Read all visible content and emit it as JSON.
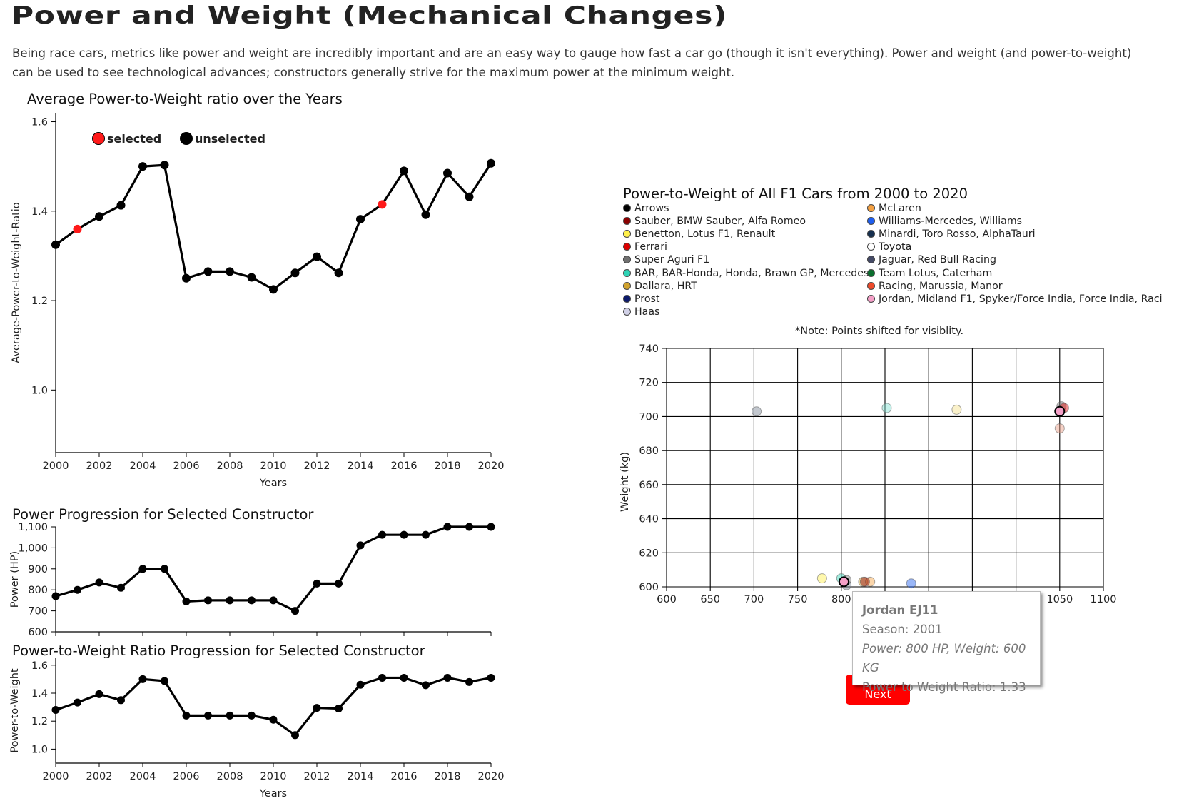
{
  "page": {
    "title": "Power and Weight (Mechanical Changes)",
    "intro": "Being race cars, metrics like power and weight are incredibly important and are an easy way to gauge how fast a car go (though it isn't everything). Power and weight (and power-to-weight) can be used to see technological advances; constructors generally strive for the maximum power at the minimum weight."
  },
  "colors": {
    "selected": "#ff1a1a",
    "unselected": "#000000",
    "button": "#ff0000"
  },
  "chart_data": [
    {
      "id": "avg_ptw",
      "type": "line",
      "title": "Average Power-to-Weight ratio over the Years",
      "xlabel": "Years",
      "ylabel": "Average-Power-to-Weight-Ratio",
      "xlim": [
        2000,
        2020
      ],
      "ylim": [
        0.86,
        1.62
      ],
      "xticks": [
        2000,
        2002,
        2004,
        2006,
        2008,
        2010,
        2012,
        2014,
        2016,
        2018,
        2020
      ],
      "yticks": [
        1.0,
        1.2,
        1.4,
        1.6
      ],
      "legend": [
        {
          "label": "selected",
          "color": "#ff1a1a"
        },
        {
          "label": "unselected",
          "color": "#000000"
        }
      ],
      "legend_position": "top-left",
      "x": [
        2000,
        2001,
        2002,
        2003,
        2004,
        2005,
        2006,
        2007,
        2008,
        2009,
        2010,
        2011,
        2012,
        2013,
        2014,
        2015,
        2016,
        2017,
        2018,
        2019,
        2020
      ],
      "values": [
        1.325,
        1.36,
        1.388,
        1.413,
        1.5,
        1.503,
        1.25,
        1.265,
        1.265,
        1.252,
        1.225,
        1.262,
        1.298,
        1.262,
        1.382,
        1.415,
        1.49,
        1.392,
        1.485,
        1.432,
        1.507
      ],
      "selected_x": [
        2001,
        2015
      ]
    },
    {
      "id": "power",
      "type": "line",
      "title": "Power Progression for Selected Constructor",
      "xlabel": "",
      "ylabel": "Power (HP)",
      "xlim": [
        2000,
        2020
      ],
      "ylim": [
        600,
        1100
      ],
      "yticks": [
        600,
        700,
        800,
        900,
        1000,
        1100
      ],
      "ytick_labels": [
        "600",
        "700",
        "800",
        "900",
        "1,000",
        "1,100"
      ],
      "x": [
        2000,
        2001,
        2002,
        2003,
        2004,
        2005,
        2006,
        2007,
        2008,
        2009,
        2010,
        2011,
        2012,
        2013,
        2014,
        2015,
        2016,
        2017,
        2018,
        2019,
        2020
      ],
      "values": [
        770,
        800,
        835,
        810,
        900,
        900,
        745,
        750,
        750,
        750,
        750,
        700,
        830,
        830,
        1012,
        1062,
        1062,
        1062,
        1100,
        1100,
        1100
      ]
    },
    {
      "id": "ptw_constructor",
      "type": "line",
      "title": "Power-to-Weight Ratio Progression for Selected Constructor",
      "xlabel": "Years",
      "ylabel": "Power-to-Weight",
      "xlim": [
        2000,
        2020
      ],
      "ylim": [
        0.9,
        1.65
      ],
      "xticks": [
        2000,
        2002,
        2004,
        2006,
        2008,
        2010,
        2012,
        2014,
        2016,
        2018,
        2020
      ],
      "yticks": [
        1.0,
        1.2,
        1.4,
        1.6
      ],
      "x": [
        2000,
        2001,
        2002,
        2003,
        2004,
        2005,
        2006,
        2007,
        2008,
        2009,
        2010,
        2011,
        2012,
        2013,
        2014,
        2015,
        2016,
        2017,
        2018,
        2019,
        2020
      ],
      "values": [
        1.28,
        1.333,
        1.393,
        1.35,
        1.5,
        1.487,
        1.24,
        1.24,
        1.24,
        1.24,
        1.21,
        1.1,
        1.295,
        1.29,
        1.46,
        1.51,
        1.51,
        1.457,
        1.51,
        1.48,
        1.51
      ]
    },
    {
      "id": "scatter",
      "type": "scatter",
      "title": "Power-to-Weight of All F1 Cars from 2000 to 2020",
      "note": "*Note: Points shifted for visiblity.",
      "xlabel": "",
      "ylabel": "Weight (kg)",
      "xlim": [
        600,
        1100
      ],
      "ylim": [
        600,
        740
      ],
      "xticks": [
        600,
        650,
        700,
        750,
        800,
        850,
        900,
        950,
        1000,
        1050,
        1100
      ],
      "yticks": [
        600,
        620,
        640,
        660,
        680,
        700,
        720,
        740
      ],
      "xtick_labels": [
        "600",
        "650",
        "700",
        "750",
        "800",
        "",
        "",
        "",
        "",
        "1050",
        "1100"
      ],
      "grid": true,
      "legend_columns": [
        [
          {
            "label": "Arrows",
            "color": "#000000"
          },
          {
            "label": "Sauber, BMW Sauber, Alfa Romeo",
            "color": "#8b0000"
          },
          {
            "label": "Benetton, Lotus F1, Renault",
            "color": "#fff04a"
          },
          {
            "label": "Ferrari",
            "color": "#dc0000"
          },
          {
            "label": "Super Aguri F1",
            "color": "#707070"
          },
          {
            "label": "BAR, BAR-Honda, Honda, Brawn GP, Mercedes",
            "color": "#2fd4b6"
          },
          {
            "label": "Dallara, HRT",
            "color": "#d1a32e"
          },
          {
            "label": "Prost",
            "color": "#0c1a6b"
          },
          {
            "label": "Haas",
            "color": "#d0d0e6"
          }
        ],
        [
          {
            "label": "McLaren",
            "color": "#f5a142"
          },
          {
            "label": "Williams-Mercedes, Williams",
            "color": "#1f5ff0"
          },
          {
            "label": "Minardi, Toro Rosso, AlphaTauri",
            "color": "#16304f"
          },
          {
            "label": "Toyota",
            "color": "#ffffff"
          },
          {
            "label": "Jaguar, Red Bull Racing",
            "color": "#444a66"
          },
          {
            "label": "Team Lotus, Caterham",
            "color": "#0b6e2e"
          },
          {
            "label": "Racing, Marussia, Manor",
            "color": "#ee4b2b"
          },
          {
            "label": "Jordan, Midland F1, Spyker/Force India, Force India, Raci",
            "color": "#f5a0c8"
          }
        ]
      ],
      "points": [
        {
          "x": 703,
          "y": 703,
          "color": "#7b8694"
        },
        {
          "x": 1052,
          "y": 706,
          "color": "#707070"
        },
        {
          "x": 1055,
          "y": 705,
          "color": "#dc0000"
        },
        {
          "x": 1050,
          "y": 693,
          "color": "#e89a80"
        },
        {
          "x": 852,
          "y": 705,
          "color": "#7fe0d0"
        },
        {
          "x": 932,
          "y": 704,
          "color": "#f5e08a"
        },
        {
          "x": 778,
          "y": 605,
          "color": "#fff04a"
        },
        {
          "x": 800,
          "y": 605,
          "color": "#2fd4b6"
        },
        {
          "x": 806,
          "y": 604,
          "color": "#707070"
        },
        {
          "x": 806,
          "y": 601,
          "color": "#7b8694"
        },
        {
          "x": 825,
          "y": 603,
          "color": "#d1a32e"
        },
        {
          "x": 833,
          "y": 603,
          "color": "#f5a142"
        },
        {
          "x": 827,
          "y": 603,
          "color": "#8b0000"
        },
        {
          "x": 880,
          "y": 602,
          "color": "#1f5ff0"
        }
      ],
      "highlight": [
        {
          "x": 803,
          "y": 603,
          "color": "#f5a0c8"
        },
        {
          "x": 1050,
          "y": 703,
          "color": "#f5a0c8"
        }
      ]
    }
  ],
  "tooltip": {
    "name": "Jordan EJ11",
    "season": "Season: 2001",
    "power_weight": "Power: 800 HP, Weight: 600 KG",
    "ratio": "Power to Weight Ratio: 1.33"
  },
  "controls": {
    "next_label": "Next"
  }
}
